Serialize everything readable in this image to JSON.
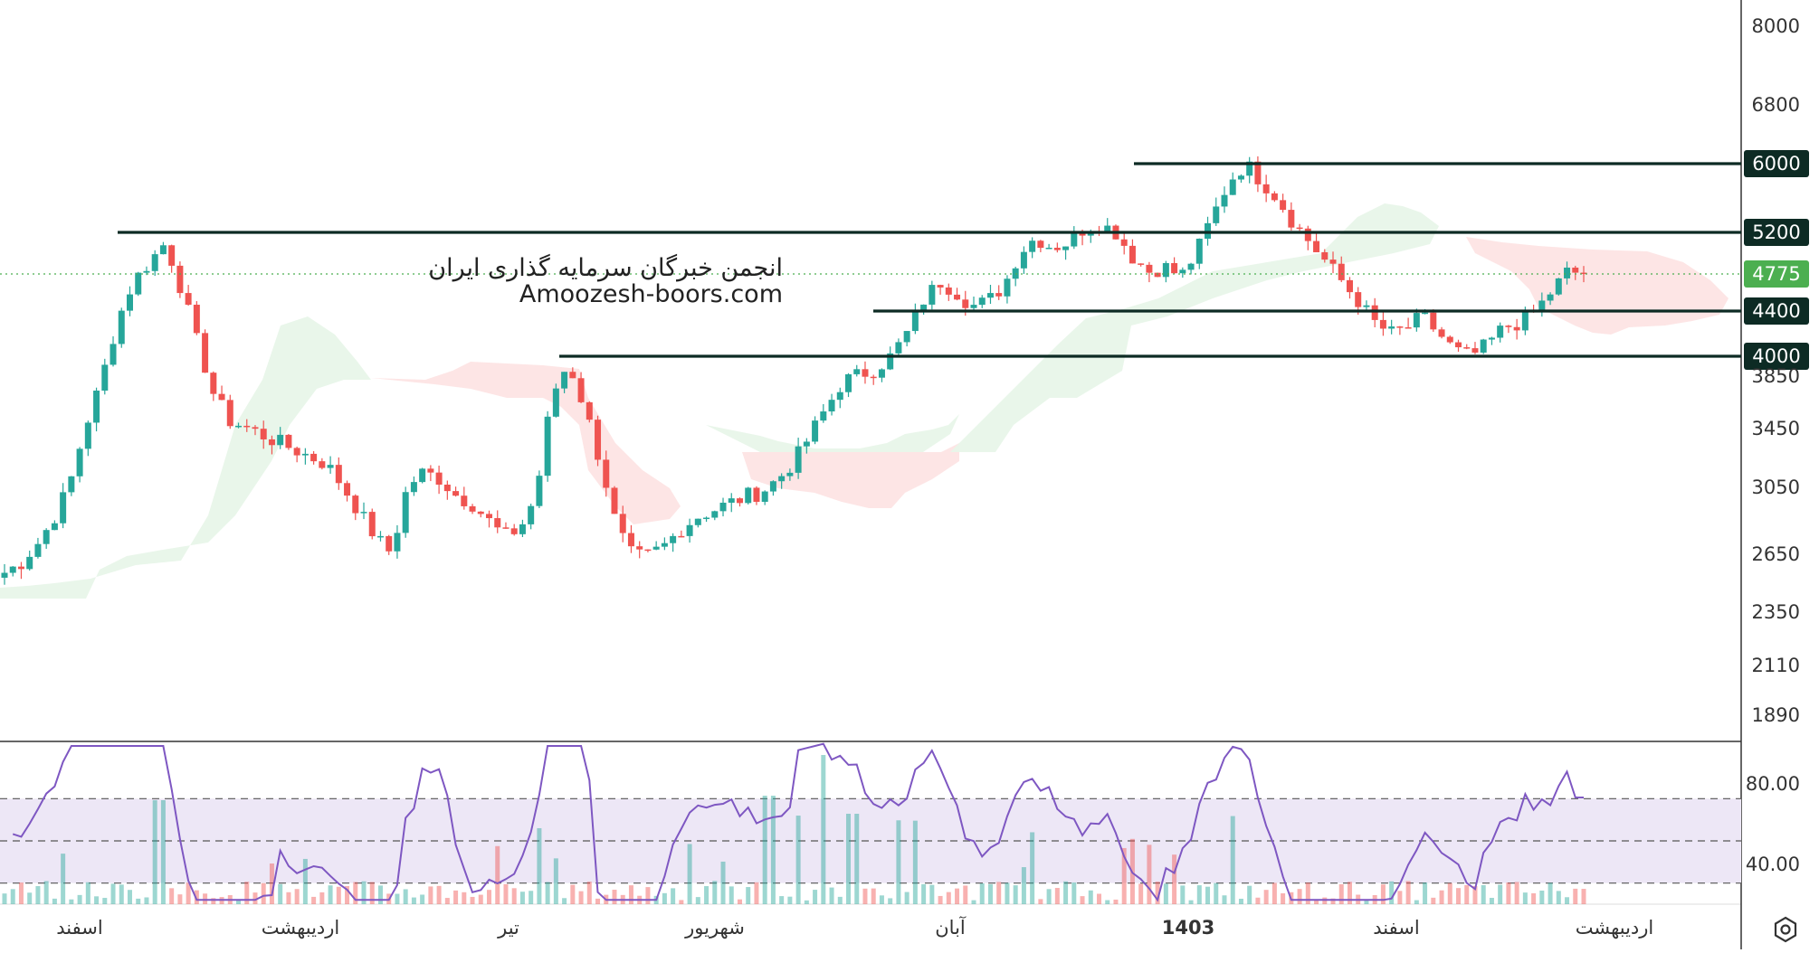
{
  "watermark": {
    "line1": "انجمن خبرگان سرمایه گذاری ایران",
    "line2": "Amoozesh-boors.com"
  },
  "colors": {
    "up": "#26a69a",
    "down": "#ef5350",
    "level_line": "#0d2b24",
    "rsi_line": "#7e57c2",
    "rsi_band": "#ede7f6",
    "cloud_green": "#e8f5e9",
    "cloud_red": "#fde4e4",
    "current_price": "#4caf50"
  },
  "current_price": {
    "value": 4775,
    "label": "4775"
  },
  "timeline_labels": [
    {
      "label": "اسفند",
      "bold": false
    },
    {
      "label": "اردیبهشت",
      "bold": false
    },
    {
      "label": "تیر",
      "bold": false
    },
    {
      "label": "شهریور",
      "bold": false
    },
    {
      "label": "آبان",
      "bold": false
    },
    {
      "label": "1403",
      "bold": true
    },
    {
      "label": "اسفند",
      "bold": false
    },
    {
      "label": "اردیبهشت",
      "bold": false
    }
  ],
  "chart_data": [
    {
      "type": "candlestick",
      "title": "",
      "price_axis_ticks": [
        "8000",
        "6800",
        "6000",
        "5200",
        "4775",
        "4400",
        "4000",
        "3850",
        "3450",
        "3050",
        "2650",
        "2350",
        "2110",
        "1890"
      ],
      "support_resistance_levels": [
        {
          "value": 6000,
          "label": "6000"
        },
        {
          "value": 5200,
          "label": "5200"
        },
        {
          "value": 4400,
          "label": "4400"
        },
        {
          "value": 4000,
          "label": "4000"
        }
      ],
      "price_path": [
        2550,
        2600,
        2700,
        2850,
        3050,
        3450,
        3800,
        4300,
        4700,
        4900,
        5100,
        4600,
        4100,
        3700,
        3500,
        3450,
        3400,
        3350,
        3300,
        3250,
        3200,
        3050,
        2900,
        2750,
        2650,
        3050,
        3150,
        3100,
        3000,
        2950,
        2850,
        2750,
        2800,
        3000,
        3700,
        3950,
        3600,
        3200,
        2800,
        2630,
        2640,
        2700,
        2800,
        2870,
        2910,
        2950,
        2990,
        3020,
        3100,
        3220,
        3400,
        3600,
        3800,
        3850,
        3900,
        4000,
        4200,
        4500,
        4700,
        4600,
        4450,
        4500,
        4650,
        5000,
        5150,
        5050,
        5100,
        5250,
        5300,
        5200,
        4950,
        4800,
        4850,
        4750,
        5000,
        5400,
        5800,
        6000,
        5800,
        5600,
        5300,
        5100,
        4900,
        4700,
        4500,
        4300,
        4200,
        4250,
        4350,
        4200,
        4050,
        4000,
        4100,
        4250,
        4300,
        4400,
        4600,
        4800,
        4775
      ],
      "indicator": {
        "name": "RSI",
        "ticks": [
          "80.00",
          "40.00"
        ],
        "upper": 70,
        "middle": 50,
        "lower": 30
      }
    }
  ]
}
